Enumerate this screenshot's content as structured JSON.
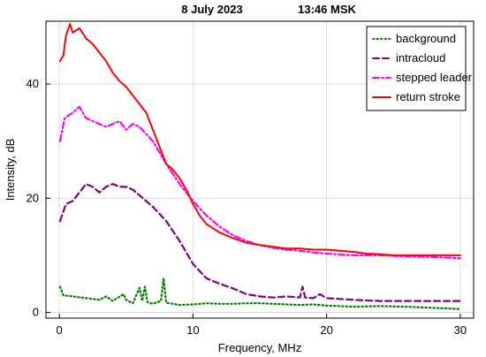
{
  "chart_data": {
    "type": "line",
    "title_date": "8 July 2023",
    "title_time": "13:46 MSK",
    "xlabel": "Frequency, MHz",
    "ylabel": "Intensity, dB",
    "xlim": [
      -1,
      31
    ],
    "ylim": [
      -1,
      51
    ],
    "xticks": [
      0,
      10,
      20,
      30
    ],
    "yticks": [
      0,
      20,
      40
    ],
    "grid": true,
    "legend_position": "top-right",
    "series": [
      {
        "name": "background",
        "color": "#007f00",
        "dash": "dotted",
        "points": [
          [
            0.05,
            4.5
          ],
          [
            0.3,
            3.0
          ],
          [
            1,
            2.8
          ],
          [
            2,
            2.5
          ],
          [
            3,
            2.2
          ],
          [
            3.5,
            2.8
          ],
          [
            4,
            2.0
          ],
          [
            4.8,
            3.2
          ],
          [
            5,
            2.2
          ],
          [
            5.5,
            1.6
          ],
          [
            6,
            4.3
          ],
          [
            6.2,
            2.0
          ],
          [
            6.4,
            4.5
          ],
          [
            6.6,
            1.8
          ],
          [
            7,
            1.5
          ],
          [
            7.6,
            2.0
          ],
          [
            7.8,
            6.0
          ],
          [
            8,
            1.7
          ],
          [
            9,
            1.3
          ],
          [
            10,
            1.4
          ],
          [
            11,
            1.6
          ],
          [
            12,
            1.5
          ],
          [
            13,
            1.5
          ],
          [
            14,
            1.6
          ],
          [
            15,
            1.6
          ],
          [
            16,
            1.5
          ],
          [
            17,
            1.4
          ],
          [
            18,
            1.3
          ],
          [
            19,
            1.4
          ],
          [
            20,
            1.2
          ],
          [
            22,
            1.0
          ],
          [
            24,
            1.1
          ],
          [
            26,
            1.0
          ],
          [
            28,
            0.8
          ],
          [
            30,
            0.6
          ]
        ]
      },
      {
        "name": "intracloud",
        "color": "#800080",
        "dash": "dashed",
        "points": [
          [
            0.05,
            16
          ],
          [
            0.5,
            19
          ],
          [
            1,
            19.5
          ],
          [
            1.5,
            21
          ],
          [
            2,
            22.5
          ],
          [
            2.5,
            22
          ],
          [
            3,
            21
          ],
          [
            3.5,
            22
          ],
          [
            4,
            22.5
          ],
          [
            4.5,
            22
          ],
          [
            5,
            22
          ],
          [
            5.5,
            21.5
          ],
          [
            6,
            20.5
          ],
          [
            7,
            18.5
          ],
          [
            8,
            16
          ],
          [
            9,
            12.5
          ],
          [
            10,
            8.5
          ],
          [
            11,
            6
          ],
          [
            12,
            5
          ],
          [
            13,
            4.2
          ],
          [
            14,
            3.2
          ],
          [
            15,
            2.8
          ],
          [
            16,
            2.6
          ],
          [
            17,
            2.8
          ],
          [
            18,
            2.6
          ],
          [
            18.2,
            4.5
          ],
          [
            18.4,
            2.6
          ],
          [
            19,
            2.5
          ],
          [
            19.5,
            3.2
          ],
          [
            20,
            2.5
          ],
          [
            22,
            2.2
          ],
          [
            24,
            2.0
          ],
          [
            26,
            2.0
          ],
          [
            28,
            2.0
          ],
          [
            30,
            2.0
          ]
        ]
      },
      {
        "name": "stepped leader",
        "color": "#ff00ff",
        "dash": "dashdot",
        "points": [
          [
            0.05,
            30
          ],
          [
            0.4,
            34
          ],
          [
            1,
            35
          ],
          [
            1.5,
            36
          ],
          [
            2,
            34
          ],
          [
            2.5,
            33.5
          ],
          [
            3,
            33
          ],
          [
            3.5,
            32.5
          ],
          [
            4,
            33
          ],
          [
            4.5,
            33.5
          ],
          [
            5,
            32
          ],
          [
            5.5,
            33
          ],
          [
            6,
            32.5
          ],
          [
            7,
            30
          ],
          [
            8,
            26
          ],
          [
            9,
            22.5
          ],
          [
            10,
            19.5
          ],
          [
            11,
            17
          ],
          [
            12,
            15
          ],
          [
            13,
            13.5
          ],
          [
            14,
            12.5
          ],
          [
            15,
            11.8
          ],
          [
            16,
            11.3
          ],
          [
            17,
            11
          ],
          [
            18,
            10.8
          ],
          [
            19,
            10.5
          ],
          [
            20,
            10.3
          ],
          [
            22,
            10
          ],
          [
            24,
            10
          ],
          [
            26,
            9.8
          ],
          [
            28,
            9.7
          ],
          [
            30,
            9.5
          ]
        ]
      },
      {
        "name": "return stroke",
        "color": "#ff0000",
        "dash": "solid",
        "points": [
          [
            0.05,
            44
          ],
          [
            0.3,
            45
          ],
          [
            0.5,
            48.5
          ],
          [
            0.8,
            50.5
          ],
          [
            1,
            49
          ],
          [
            1.5,
            49.8
          ],
          [
            2,
            48
          ],
          [
            2.5,
            47
          ],
          [
            3,
            45.5
          ],
          [
            3.5,
            44
          ],
          [
            4,
            42
          ],
          [
            4.5,
            40.5
          ],
          [
            5,
            39.5
          ],
          [
            5.5,
            38
          ],
          [
            6,
            36.5
          ],
          [
            6.5,
            35
          ],
          [
            7,
            32
          ],
          [
            7.5,
            29
          ],
          [
            8,
            26
          ],
          [
            8.5,
            25
          ],
          [
            9,
            23.5
          ],
          [
            9.5,
            21.5
          ],
          [
            10,
            19
          ],
          [
            10.5,
            17
          ],
          [
            11,
            15.5
          ],
          [
            12,
            14
          ],
          [
            13,
            13
          ],
          [
            14,
            12.2
          ],
          [
            15,
            11.8
          ],
          [
            16,
            11.5
          ],
          [
            17,
            11.2
          ],
          [
            18,
            11.2
          ],
          [
            19,
            11
          ],
          [
            20,
            11
          ],
          [
            21,
            10.8
          ],
          [
            22,
            10.6
          ],
          [
            23,
            10.3
          ],
          [
            24,
            10.2
          ],
          [
            25,
            10
          ],
          [
            26,
            10
          ],
          [
            27,
            10
          ],
          [
            28,
            10
          ],
          [
            29,
            10
          ],
          [
            30,
            10
          ]
        ]
      }
    ]
  }
}
